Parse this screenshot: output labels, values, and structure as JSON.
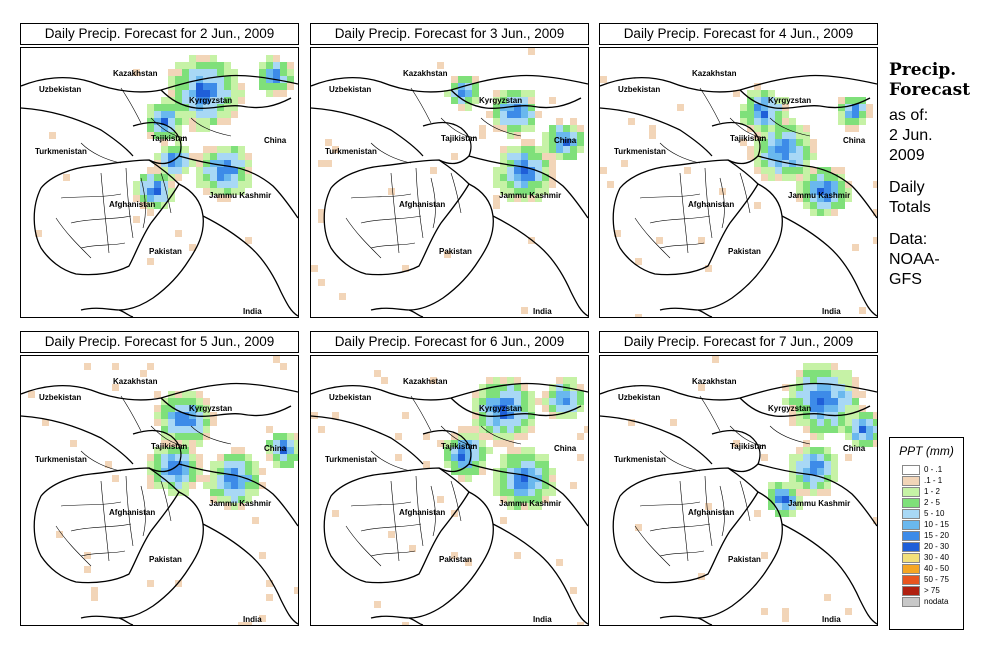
{
  "panels": [
    {
      "title": "Daily Precip. Forecast for  2 Jun., 2009"
    },
    {
      "title": "Daily Precip. Forecast for  3 Jun., 2009"
    },
    {
      "title": "Daily Precip. Forecast for  4 Jun., 2009"
    },
    {
      "title": "Daily Precip. Forecast for  5 Jun., 2009"
    },
    {
      "title": "Daily Precip. Forecast for  6 Jun., 2009"
    },
    {
      "title": "Daily Precip. Forecast for  7 Jun., 2009"
    }
  ],
  "map_labels": {
    "kazakhstan": "Kazakhstan",
    "uzbekistan": "Uzbekistan",
    "kyrgyzstan": "Kyrgyzstan",
    "tajikistan": "Tajikistan",
    "turkmenistan": "Turkmenistan",
    "china": "China",
    "afghanistan": "Afghanistan",
    "jammu_kashmir": "Jammu Kashmir",
    "pakistan": "Pakistan",
    "india": "India"
  },
  "side": {
    "title_line1": "Precip.",
    "title_line2": "Forecast",
    "asof_line1": "as of:",
    "asof_line2": "2 Jun.",
    "asof_line3": "2009",
    "totals_line1": "Daily",
    "totals_line2": "Totals",
    "data_line1": "Data:",
    "data_line2": "NOAA-",
    "data_line3": "GFS"
  },
  "legend": {
    "title": "PPT (mm)",
    "items": [
      {
        "label": "0 - .1",
        "color": "#ffffff"
      },
      {
        "label": ".1 - 1",
        "color": "#f2d5b8"
      },
      {
        "label": "1 - 2",
        "color": "#c6f2a6"
      },
      {
        "label": "2 - 5",
        "color": "#7fe07a"
      },
      {
        "label": "5 - 10",
        "color": "#a8d8f5"
      },
      {
        "label": "10 - 15",
        "color": "#6ab8ee"
      },
      {
        "label": "15 - 20",
        "color": "#3d8be8"
      },
      {
        "label": "20 - 30",
        "color": "#1f5fd8"
      },
      {
        "label": "30 - 40",
        "color": "#f2e07a"
      },
      {
        "label": "40 - 50",
        "color": "#f5a623"
      },
      {
        "label": "50 - 75",
        "color": "#e8551f"
      },
      {
        "label": "> 75",
        "color": "#b02010"
      },
      {
        "label": "nodata",
        "color": "#c8c8c8"
      }
    ]
  }
}
